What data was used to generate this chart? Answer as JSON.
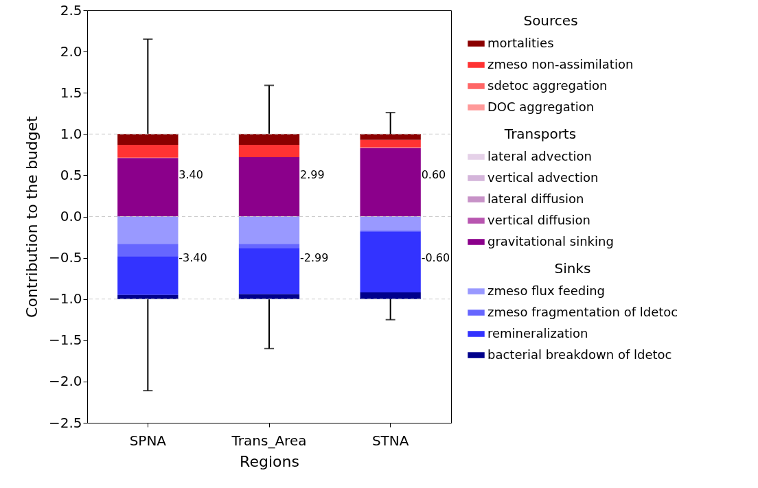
{
  "chart_data": {
    "type": "bar",
    "stacked": true,
    "xlabel": "Regions",
    "ylabel": "Contribution to the budget",
    "categories": [
      "SPNA",
      "Trans_Area",
      "STNA"
    ],
    "ylim": [
      -2.5,
      2.5
    ],
    "yticks": [
      -2.5,
      {
        "value": -2.0,
        "label": "−2.0"
      },
      -1.5,
      {
        "value": -1.0,
        "label": "−1.0"
      },
      -0.5,
      {
        "value": 0.0,
        "label": "0.0"
      },
      0.5,
      {
        "value": 1.0,
        "label": "1.0"
      },
      1.5,
      {
        "value": 2.0,
        "label": "2.0"
      },
      2.5
    ],
    "grid": false,
    "legend": "right",
    "legend_title": [
      "Sources",
      "Transports",
      "Sinks"
    ],
    "series": [
      {
        "name": "gravitational sinking",
        "color": "#8b008b",
        "values": [
          0.71,
          0.72,
          0.83
        ]
      },
      {
        "name": "vertical diffusion",
        "color": "#b856b0",
        "values": [
          0,
          0,
          0
        ]
      },
      {
        "name": "lateral diffusion",
        "color": "#c792c7",
        "values": [
          0,
          0,
          0
        ]
      },
      {
        "name": "vertical advection",
        "color": "#d4b5da",
        "values": [
          0,
          0,
          0
        ]
      },
      {
        "name": "lateral advection",
        "color": "#e5d1e8",
        "values": [
          0,
          0,
          0
        ]
      },
      {
        "name": "DOC aggregation",
        "color": "#ff9999",
        "values": [
          0,
          0,
          0
        ]
      },
      {
        "name": "sdetoc aggregation",
        "color": "#ff6666",
        "values": [
          0.01,
          0.0,
          0.01
        ]
      },
      {
        "name": "zmeso non-assimilation",
        "color": "#ff3333",
        "values": [
          0.15,
          0.15,
          0.09
        ]
      },
      {
        "name": "mortalities",
        "color": "#8b0000",
        "values": [
          0.13,
          0.13,
          0.07
        ],
        "errors": [
          [
            1.0,
            2.15
          ],
          [
            1.0,
            1.59
          ],
          [
            1.0,
            1.26
          ]
        ]
      },
      {
        "name": "zmeso flux feeding",
        "color": "#9999ff",
        "values": [
          -0.33,
          -0.33,
          -0.17
        ]
      },
      {
        "name": "zmeso fragmentation of ldetoc",
        "color": "#6666ff",
        "values": [
          -0.15,
          -0.05,
          -0.01
        ]
      },
      {
        "name": "remineralization",
        "color": "#3333ff",
        "values": [
          -0.47,
          -0.56,
          -0.74
        ]
      },
      {
        "name": "bacterial breakdown of ldetoc",
        "color": "#00008b",
        "values": [
          -0.05,
          -0.06,
          -0.08
        ],
        "errors": [
          [
            -2.11,
            -1.0
          ],
          [
            -1.6,
            -1.0
          ],
          [
            -1.25,
            -1.0
          ]
        ]
      }
    ],
    "ref_lines": [
      {
        "axis": "y",
        "value": 1.0,
        "color": "#cccccc",
        "line_style": "dashed"
      },
      {
        "axis": "y",
        "value": 0.0,
        "color": "#cccccc",
        "line_style": "dashed"
      },
      {
        "axis": "y",
        "value": -1.0,
        "color": "#cccccc",
        "line_style": "dashed"
      }
    ],
    "annotations": [
      "3.40",
      "-3.40",
      "2.99",
      "-2.99",
      "0.60",
      "-0.60"
    ]
  }
}
